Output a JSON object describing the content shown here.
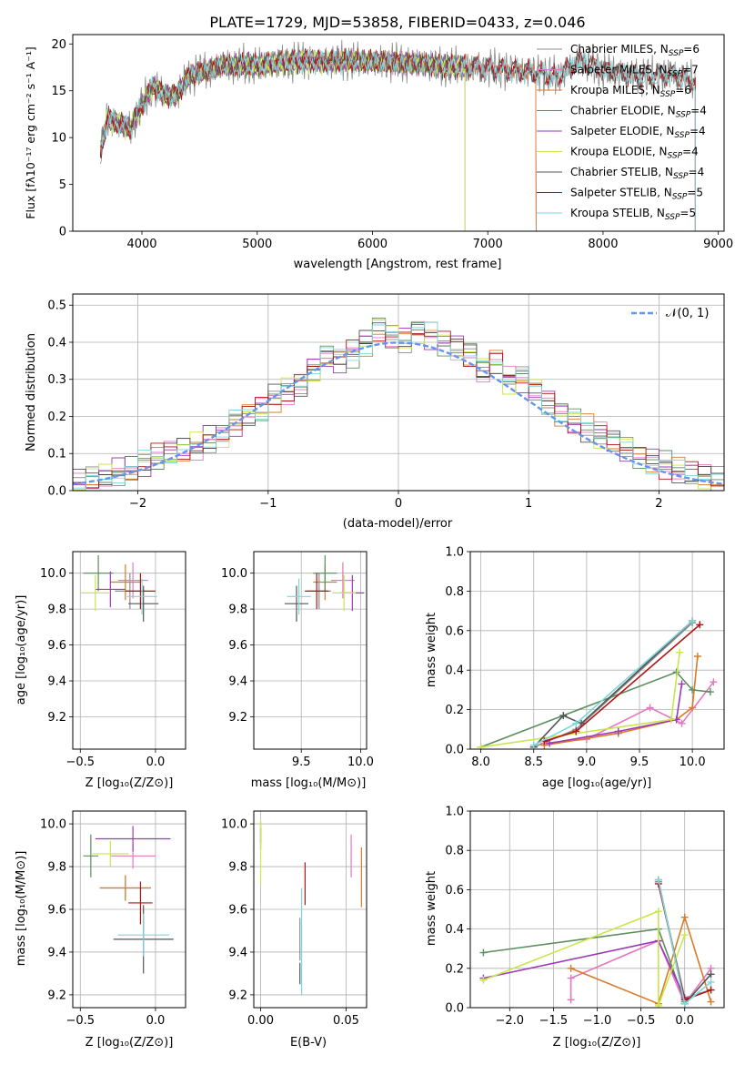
{
  "figure_title": "PLATE=1729, MJD=53858, FIBERID=0433, z=0.046",
  "colors": {
    "Chabrier MILES": "#8c8c8c",
    "Salpeter MILES": "#e377c2",
    "Kroupa MILES": "#d97b2b",
    "Chabrier ELODIE": "#5b8f5f",
    "Salpeter ELODIE": "#9a3bb5",
    "Kroupa ELODIE": "#c9e64a",
    "Chabrier STELIB": "#555555",
    "Salpeter STELIB": "#b01515",
    "Kroupa STELIB": "#7fd6d9",
    "normal_curve": "#6495ed"
  },
  "chart_data": [
    {
      "id": "spectrum",
      "type": "line",
      "title": "PLATE=1729, MJD=53858, FIBERID=0433, z=0.046",
      "xlabel": "wavelength [Angstrom, rest frame]",
      "ylabel": "Flux [fλ10⁻¹⁷ erg cm⁻² s⁻¹ A⁻¹]",
      "xlim": [
        3400,
        9050
      ],
      "ylim": [
        0,
        21
      ],
      "xticks": [
        "4000",
        "5000",
        "6000",
        "7000",
        "8000",
        "9000"
      ],
      "yticks": [
        "0",
        "5",
        "10",
        "15",
        "20"
      ],
      "grid": false,
      "legend_position": "right",
      "legend": [
        {
          "model": "Chabrier MILES",
          "n": "6"
        },
        {
          "model": "Salpeter MILES",
          "n": "7"
        },
        {
          "model": "Kroupa MILES",
          "n": "6"
        },
        {
          "model": "Chabrier ELODIE",
          "n": "4"
        },
        {
          "model": "Salpeter ELODIE",
          "n": "4"
        },
        {
          "model": "Kroupa ELODIE",
          "n": "4"
        },
        {
          "model": "Chabrier STELIB",
          "n": "4"
        },
        {
          "model": "Salpeter STELIB",
          "n": "5"
        },
        {
          "model": "Kroupa STELIB",
          "n": "5"
        }
      ],
      "data_spectrum": {
        "x": [
          3640,
          3700,
          3800,
          3900,
          4000,
          4100,
          4200,
          4300,
          4400,
          4500,
          4600,
          4700,
          4800,
          4900,
          5000,
          5200,
          5400,
          5600,
          5800,
          6000,
          6200,
          6400,
          6600,
          6800,
          7000,
          7200,
          7400,
          7600,
          7800,
          8000,
          8200,
          8400,
          8600,
          8800
        ],
        "y": [
          8.5,
          12.0,
          11.5,
          11.0,
          13.5,
          15.5,
          14.5,
          14.5,
          16.5,
          17.0,
          17.2,
          17.8,
          17.6,
          17.8,
          17.7,
          18.0,
          18.2,
          18.1,
          18.2,
          18.1,
          18.0,
          17.9,
          17.6,
          17.6,
          17.4,
          17.2,
          17.0,
          16.5,
          18.2,
          17.2,
          16.8,
          16.5,
          16.8,
          16.0
        ]
      },
      "models_end_at": {
        "Chabrier MILES": 7420,
        "Salpeter MILES": 7420,
        "Kroupa MILES": 7420,
        "Chabrier ELODIE": 6800,
        "Salpeter ELODIE": 6800,
        "Kroupa ELODIE": 6800,
        "Chabrier STELIB": 8800,
        "Salpeter STELIB": 8800,
        "Kroupa STELIB": 8800
      }
    },
    {
      "id": "residuals",
      "type": "line",
      "xlabel": "(data-model)/error",
      "ylabel": "Normed distribution",
      "xlim": [
        -2.5,
        2.5
      ],
      "ylim": [
        0,
        0.53
      ],
      "xticks": [
        "−2",
        "−1",
        "0",
        "1",
        "2"
      ],
      "yticks": [
        "0.0",
        "0.1",
        "0.2",
        "0.3",
        "0.4",
        "0.5"
      ],
      "grid": true,
      "legend_position": "top-right",
      "legend": [
        "𝒩(0, 1)"
      ],
      "bin_edges": [
        -2.5,
        -2.4,
        -2.3,
        -2.2,
        -2.1,
        -2.0,
        -1.9,
        -1.8,
        -1.7,
        -1.6,
        -1.5,
        -1.4,
        -1.3,
        -1.2,
        -1.1,
        -1.0,
        -0.9,
        -0.8,
        -0.7,
        -0.6,
        -0.5,
        -0.4,
        -0.3,
        -0.2,
        -0.1,
        0.0,
        0.1,
        0.2,
        0.3,
        0.4,
        0.5,
        0.6,
        0.7,
        0.8,
        0.9,
        1.0,
        1.1,
        1.2,
        1.3,
        1.4,
        1.5,
        1.6,
        1.7,
        1.8,
        1.9,
        2.0,
        2.1,
        2.2,
        2.3,
        2.4,
        2.5
      ],
      "histogram_mean": [
        0.02,
        0.03,
        0.04,
        0.05,
        0.055,
        0.07,
        0.09,
        0.1,
        0.11,
        0.12,
        0.14,
        0.15,
        0.18,
        0.2,
        0.22,
        0.25,
        0.27,
        0.29,
        0.33,
        0.36,
        0.35,
        0.37,
        0.4,
        0.44,
        0.42,
        0.41,
        0.43,
        0.42,
        0.4,
        0.39,
        0.37,
        0.33,
        0.35,
        0.3,
        0.3,
        0.27,
        0.24,
        0.21,
        0.19,
        0.17,
        0.15,
        0.13,
        0.11,
        0.095,
        0.08,
        0.07,
        0.055,
        0.045,
        0.035,
        0.025
      ],
      "normal_curve": {
        "name": "𝒩(0, 1)",
        "mean": 0,
        "sigma": 1
      }
    },
    {
      "id": "age-vs-Z",
      "type": "scatter",
      "xlabel": "Z [log₁₀(Z/Z⊙)]",
      "ylabel": "age  [log₁₀(age/yr)]",
      "xlim": [
        -0.55,
        0.2
      ],
      "ylim": [
        9.02,
        10.12
      ],
      "xticks": [
        "−0.5",
        "0.0"
      ],
      "yticks": [
        "9.2",
        "9.4",
        "9.6",
        "9.8",
        "10.0"
      ],
      "grid": true,
      "points": [
        {
          "model": "Chabrier MILES",
          "x": -0.17,
          "y": 9.9,
          "xerr": 0.1,
          "yerr": 0.1
        },
        {
          "model": "Salpeter MILES",
          "x": -0.15,
          "y": 9.96,
          "xerr": 0.1,
          "yerr": 0.1
        },
        {
          "model": "Kroupa MILES",
          "x": -0.2,
          "y": 9.95,
          "xerr": 0.1,
          "yerr": 0.1
        },
        {
          "model": "Chabrier ELODIE",
          "x": -0.38,
          "y": 10.0,
          "xerr": 0.1,
          "yerr": 0.1
        },
        {
          "model": "Salpeter ELODIE",
          "x": -0.3,
          "y": 9.91,
          "xerr": 0.1,
          "yerr": 0.1
        },
        {
          "model": "Kroupa ELODIE",
          "x": -0.4,
          "y": 9.89,
          "xerr": 0.1,
          "yerr": 0.1
        },
        {
          "model": "Chabrier STELIB",
          "x": -0.08,
          "y": 9.83,
          "xerr": 0.1,
          "yerr": 0.1
        },
        {
          "model": "Salpeter STELIB",
          "x": -0.1,
          "y": 9.9,
          "xerr": 0.1,
          "yerr": 0.1
        },
        {
          "model": "Kroupa STELIB",
          "x": -0.09,
          "y": 9.87,
          "xerr": 0.1,
          "yerr": 0.1
        }
      ]
    },
    {
      "id": "age-vs-mass",
      "type": "scatter",
      "xlabel": "mass [log₁₀(M/M⊙)]",
      "ylabel": "",
      "xlim": [
        9.1,
        10.05
      ],
      "ylim": [
        9.02,
        10.12
      ],
      "xticks": [
        "9.5",
        "10.0"
      ],
      "yticks": [
        "9.2",
        "9.4",
        "9.6",
        "9.8",
        "10.0"
      ],
      "grid": true,
      "points": [
        {
          "model": "Chabrier MILES",
          "x": 9.65,
          "y": 9.9,
          "xerr": 0.1,
          "yerr": 0.1
        },
        {
          "model": "Salpeter MILES",
          "x": 9.85,
          "y": 9.96,
          "xerr": 0.1,
          "yerr": 0.1
        },
        {
          "model": "Kroupa MILES",
          "x": 9.7,
          "y": 9.95,
          "xerr": 0.1,
          "yerr": 0.1
        },
        {
          "model": "Chabrier ELODIE",
          "x": 9.7,
          "y": 10.0,
          "xerr": 0.1,
          "yerr": 0.1
        },
        {
          "model": "Salpeter ELODIE",
          "x": 9.93,
          "y": 9.89,
          "xerr": 0.1,
          "yerr": 0.1
        },
        {
          "model": "Kroupa ELODIE",
          "x": 9.86,
          "y": 9.89,
          "xerr": 0.1,
          "yerr": 0.1
        },
        {
          "model": "Chabrier STELIB",
          "x": 9.46,
          "y": 9.83,
          "xerr": 0.1,
          "yerr": 0.1
        },
        {
          "model": "Salpeter STELIB",
          "x": 9.63,
          "y": 9.9,
          "xerr": 0.1,
          "yerr": 0.1
        },
        {
          "model": "Kroupa STELIB",
          "x": 9.48,
          "y": 9.87,
          "xerr": 0.1,
          "yerr": 0.1
        }
      ]
    },
    {
      "id": "mass-weight-vs-age",
      "type": "line",
      "xlabel": "age  [log₁₀(age/yr)]",
      "ylabel": "mass weight",
      "xlim": [
        7.9,
        10.3
      ],
      "ylim": [
        0.0,
        1.0
      ],
      "xticks": [
        "8.0",
        "8.5",
        "9.0",
        "9.5",
        "10.0"
      ],
      "yticks": [
        "0.0",
        "0.2",
        "0.4",
        "0.6",
        "0.8",
        "1.0"
      ],
      "grid": true,
      "series": [
        {
          "model": "Chabrier MILES",
          "x": [
            8.5,
            8.9,
            10.0
          ],
          "y": [
            0.01,
            0.1,
            0.64
          ]
        },
        {
          "model": "Salpeter MILES",
          "x": [
            8.6,
            9.0,
            9.6,
            9.9,
            10.2
          ],
          "y": [
            0.03,
            0.05,
            0.21,
            0.13,
            0.34
          ]
        },
        {
          "model": "Kroupa MILES",
          "x": [
            8.6,
            9.3,
            9.85,
            10.0,
            10.05
          ],
          "y": [
            0.02,
            0.08,
            0.15,
            0.21,
            0.47
          ]
        },
        {
          "model": "Chabrier ELODIE",
          "x": [
            8.0,
            9.85,
            10.0,
            10.17
          ],
          "y": [
            0.01,
            0.39,
            0.3,
            0.29
          ]
        },
        {
          "model": "Salpeter ELODIE",
          "x": [
            8.65,
            9.3,
            9.85,
            9.9
          ],
          "y": [
            0.03,
            0.09,
            0.15,
            0.33
          ]
        },
        {
          "model": "Kroupa ELODIE",
          "x": [
            8.0,
            9.8,
            9.88
          ],
          "y": [
            0.01,
            0.15,
            0.49
          ]
        },
        {
          "model": "Chabrier STELIB",
          "x": [
            8.5,
            8.78,
            8.95,
            10.0
          ],
          "y": [
            0.01,
            0.17,
            0.13,
            0.65
          ]
        },
        {
          "model": "Salpeter STELIB",
          "x": [
            8.6,
            8.9,
            10.07
          ],
          "y": [
            0.04,
            0.09,
            0.63
          ]
        },
        {
          "model": "Kroupa STELIB",
          "x": [
            8.5,
            8.9,
            10.0
          ],
          "y": [
            0.02,
            0.13,
            0.65
          ]
        }
      ]
    },
    {
      "id": "mass-vs-Z",
      "type": "scatter",
      "xlabel": "Z [log₁₀(Z/Z⊙)]",
      "ylabel": "mass [log₁₀(M/M⊙)]",
      "xlim": [
        -0.55,
        0.2
      ],
      "ylim": [
        9.14,
        10.06
      ],
      "xticks": [
        "−0.5",
        "0.0"
      ],
      "yticks": [
        "9.2",
        "9.4",
        "9.6",
        "9.8",
        "10.0"
      ],
      "grid": true,
      "points": [
        {
          "model": "Chabrier MILES",
          "x": -0.2,
          "y": 9.7,
          "xerr": 0.17,
          "yerr": 0.06
        },
        {
          "model": "Salpeter MILES",
          "x": -0.15,
          "y": 9.85,
          "xerr": 0.15,
          "yerr": 0.06
        },
        {
          "model": "Kroupa MILES",
          "x": -0.2,
          "y": 9.7,
          "xerr": 0.17,
          "yerr": 0.06
        },
        {
          "model": "Chabrier ELODIE",
          "x": -0.43,
          "y": 9.85,
          "xerr": 0.05,
          "yerr": 0.1
        },
        {
          "model": "Salpeter ELODIE",
          "x": -0.15,
          "y": 9.93,
          "xerr": 0.25,
          "yerr": 0.06
        },
        {
          "model": "Kroupa ELODIE",
          "x": -0.3,
          "y": 9.86,
          "xerr": 0.12,
          "yerr": 0.06
        },
        {
          "model": "Chabrier STELIB",
          "x": -0.08,
          "y": 9.46,
          "xerr": 0.2,
          "yerr": 0.16
        },
        {
          "model": "Salpeter STELIB",
          "x": -0.1,
          "y": 9.63,
          "xerr": 0.08,
          "yerr": 0.1
        },
        {
          "model": "Kroupa STELIB",
          "x": -0.08,
          "y": 9.48,
          "xerr": 0.17,
          "yerr": 0.1
        }
      ]
    },
    {
      "id": "mass-vs-EBV",
      "type": "scatter",
      "xlabel": "E(B-V)",
      "ylabel": "",
      "xlim": [
        -0.004,
        0.062
      ],
      "ylim": [
        9.14,
        10.06
      ],
      "xticks": [
        "0.00",
        "0.05"
      ],
      "yticks": [
        "9.2",
        "9.4",
        "9.6",
        "9.8",
        "10.0"
      ],
      "grid": true,
      "points": [
        {
          "model": "Chabrier MILES",
          "x": 0.023,
          "y": 9.46,
          "xerr": 0.0,
          "yerr": 0.1
        },
        {
          "model": "Salpeter MILES",
          "x": 0.053,
          "y": 9.85,
          "xerr": 0.0,
          "yerr": 0.1
        },
        {
          "model": "Kroupa MILES",
          "x": 0.059,
          "y": 9.75,
          "xerr": 0.0,
          "yerr": 0.14
        },
        {
          "model": "Chabrier ELODIE",
          "x": 0.0,
          "y": 9.93,
          "xerr": 0.0,
          "yerr": 0.05
        },
        {
          "model": "Salpeter ELODIE",
          "x": 0.0,
          "y": 9.96,
          "xerr": 0.0,
          "yerr": 0.05
        },
        {
          "model": "Kroupa ELODIE",
          "x": 0.0,
          "y": 9.87,
          "xerr": 0.0,
          "yerr": 0.15
        },
        {
          "model": "Chabrier STELIB",
          "x": 0.023,
          "y": 9.3,
          "xerr": 0.0,
          "yerr": 0.05
        },
        {
          "model": "Salpeter STELIB",
          "x": 0.026,
          "y": 9.72,
          "xerr": 0.0,
          "yerr": 0.1
        },
        {
          "model": "Kroupa STELIB",
          "x": 0.024,
          "y": 9.45,
          "xerr": 0.0,
          "yerr": 0.25
        }
      ]
    },
    {
      "id": "mass-weight-vs-Z",
      "type": "line",
      "xlabel": "Z [log₁₀(Z/Z⊙)]",
      "ylabel": "mass weight",
      "xlim": [
        -2.45,
        0.45
      ],
      "ylim": [
        0.0,
        1.0
      ],
      "xticks": [
        "−2.0",
        "−1.5",
        "−1.0",
        "−0.5",
        "0.0"
      ],
      "yticks": [
        "0.0",
        "0.2",
        "0.4",
        "0.6",
        "0.8",
        "1.0"
      ],
      "grid": true,
      "series": [
        {
          "model": "Chabrier MILES",
          "x": [
            -0.3,
            0.0,
            0.3
          ],
          "y": [
            0.64,
            0.05,
            0.09
          ]
        },
        {
          "model": "Salpeter MILES",
          "x": [
            -1.3,
            -1.3,
            -0.3,
            0.0,
            0.3
          ],
          "y": [
            0.04,
            0.15,
            0.34,
            0.02,
            0.2
          ]
        },
        {
          "model": "Kroupa MILES",
          "x": [
            -1.3,
            -0.3,
            0.0,
            0.3
          ],
          "y": [
            0.2,
            0.02,
            0.46,
            0.03
          ]
        },
        {
          "model": "Chabrier ELODIE",
          "x": [
            -2.3,
            -0.3,
            0.0
          ],
          "y": [
            0.28,
            0.4,
            0.03
          ]
        },
        {
          "model": "Salpeter ELODIE",
          "x": [
            -2.3,
            -0.3,
            0.0
          ],
          "y": [
            0.15,
            0.34,
            0.05
          ]
        },
        {
          "model": "Kroupa ELODIE",
          "x": [
            -2.3,
            -0.3,
            -0.3,
            0.0
          ],
          "y": [
            0.14,
            0.49,
            0.01,
            0.37
          ]
        },
        {
          "model": "Chabrier STELIB",
          "x": [
            -0.3,
            0.0,
            0.3
          ],
          "y": [
            0.65,
            0.02,
            0.17
          ]
        },
        {
          "model": "Salpeter STELIB",
          "x": [
            -0.3,
            0.0,
            0.3
          ],
          "y": [
            0.63,
            0.04,
            0.09
          ]
        },
        {
          "model": "Kroupa STELIB",
          "x": [
            -0.3,
            0.0,
            0.3
          ],
          "y": [
            0.65,
            0.02,
            0.13
          ]
        }
      ]
    }
  ]
}
